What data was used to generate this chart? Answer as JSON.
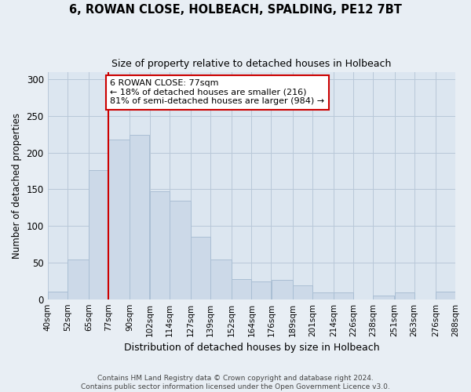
{
  "title": "6, ROWAN CLOSE, HOLBEACH, SPALDING, PE12 7BT",
  "subtitle": "Size of property relative to detached houses in Holbeach",
  "xlabel": "Distribution of detached houses by size in Holbeach",
  "ylabel": "Number of detached properties",
  "bar_edges": [
    40,
    52,
    65,
    77,
    90,
    102,
    114,
    127,
    139,
    152,
    164,
    176,
    189,
    201,
    214,
    226,
    238,
    251,
    263,
    276,
    288
  ],
  "bar_heights": [
    10,
    54,
    176,
    218,
    224,
    147,
    135,
    85,
    54,
    27,
    24,
    26,
    19,
    9,
    9,
    0,
    5,
    9,
    0,
    10
  ],
  "bar_color": "#ccd9e8",
  "bar_edgecolor": "#aabfd4",
  "vline_x": 77,
  "vline_color": "#cc0000",
  "annotation_text": "6 ROWAN CLOSE: 77sqm\n← 18% of detached houses are smaller (216)\n81% of semi-detached houses are larger (984) →",
  "annotation_box_edgecolor": "#cc0000",
  "annotation_box_facecolor": "#ffffff",
  "ylim": [
    0,
    310
  ],
  "yticks": [
    0,
    50,
    100,
    150,
    200,
    250,
    300
  ],
  "tick_labels": [
    "40sqm",
    "52sqm",
    "65sqm",
    "77sqm",
    "90sqm",
    "102sqm",
    "114sqm",
    "127sqm",
    "139sqm",
    "152sqm",
    "164sqm",
    "176sqm",
    "189sqm",
    "201sqm",
    "214sqm",
    "226sqm",
    "238sqm",
    "251sqm",
    "263sqm",
    "276sqm",
    "288sqm"
  ],
  "footer1": "Contains HM Land Registry data © Crown copyright and database right 2024.",
  "footer2": "Contains public sector information licensed under the Open Government Licence v3.0.",
  "bg_color": "#e8eef4",
  "plot_bg_color": "#dce6f0",
  "figsize": [
    6.0,
    5.0
  ],
  "dpi": 100
}
